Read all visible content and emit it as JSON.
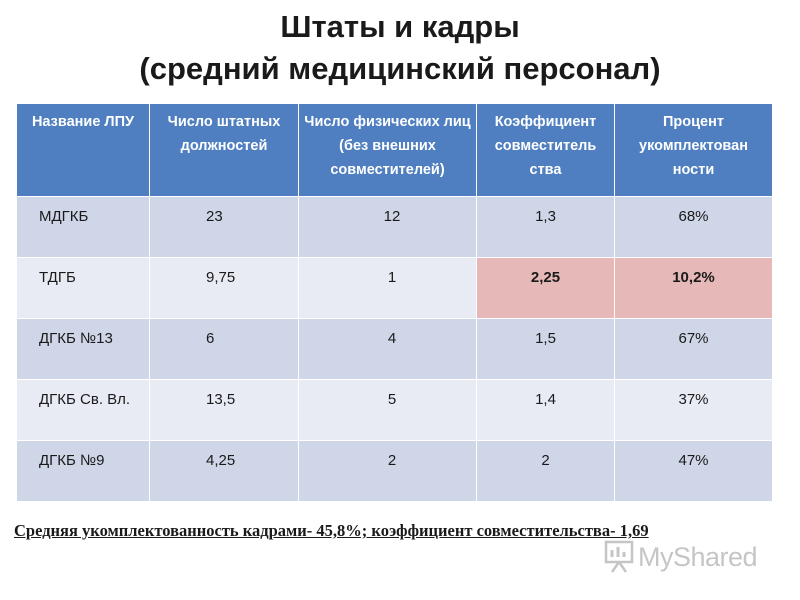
{
  "slide": {
    "title_line1": "Штаты и кадры",
    "title_line2": "(средний медицинский персонал)"
  },
  "table": {
    "headers": [
      "Название ЛПУ",
      "Число штатных должностей",
      "Число физических лиц (без внешних совместителей)",
      "Коэффициент совместитель ства",
      "Процент укомплектован ности"
    ],
    "rows": [
      {
        "cells": [
          "МДГКБ",
          "23",
          "12",
          "1,3",
          "68%"
        ]
      },
      {
        "cells": [
          "ТДГБ",
          "9,75",
          "1",
          "2,25",
          "10,2%"
        ]
      },
      {
        "cells": [
          "ДГКБ №13",
          "6",
          "4",
          "1,5",
          "67%"
        ]
      },
      {
        "cells": [
          "ДГКБ Св. Вл.",
          "13,5",
          "5",
          "1,4",
          "37%"
        ]
      },
      {
        "cells": [
          "ДГКБ №9",
          "4,25",
          "2",
          "2",
          "47%"
        ]
      }
    ]
  },
  "footer": {
    "text": "Средняя укомплектованность кадрами- 45,8%;  коэффициент совместительства- 1,69"
  },
  "watermark": {
    "text": "MyShared",
    "icon": "presentation-board-icon"
  },
  "colors": {
    "header_bg": "#4f7fc0",
    "row_odd": "#cfd6e8",
    "row_even": "#e8ebf4",
    "highlight": "#e6b9b8"
  }
}
